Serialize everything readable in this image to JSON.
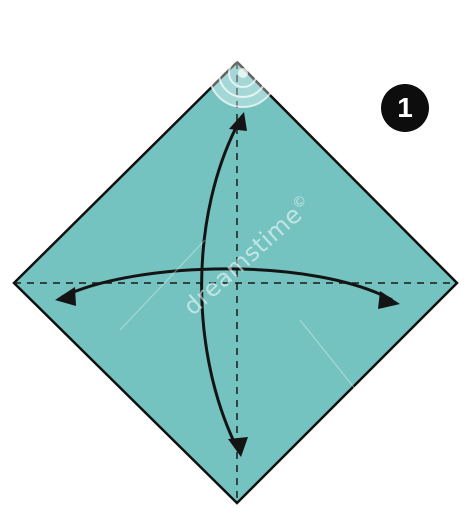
{
  "step": {
    "number": "1"
  },
  "watermark": {
    "text": "dreamstime"
  },
  "colors": {
    "paper": "#74c3c0",
    "outline": "#101010",
    "fold_line": "#1a1a1a",
    "arrow": "#141414",
    "badge": "#0d0d0d",
    "background": "#ffffff"
  },
  "icons": {
    "watermark_logo": "dreamstime-logo-icon",
    "copyright": "copyright-icon"
  }
}
